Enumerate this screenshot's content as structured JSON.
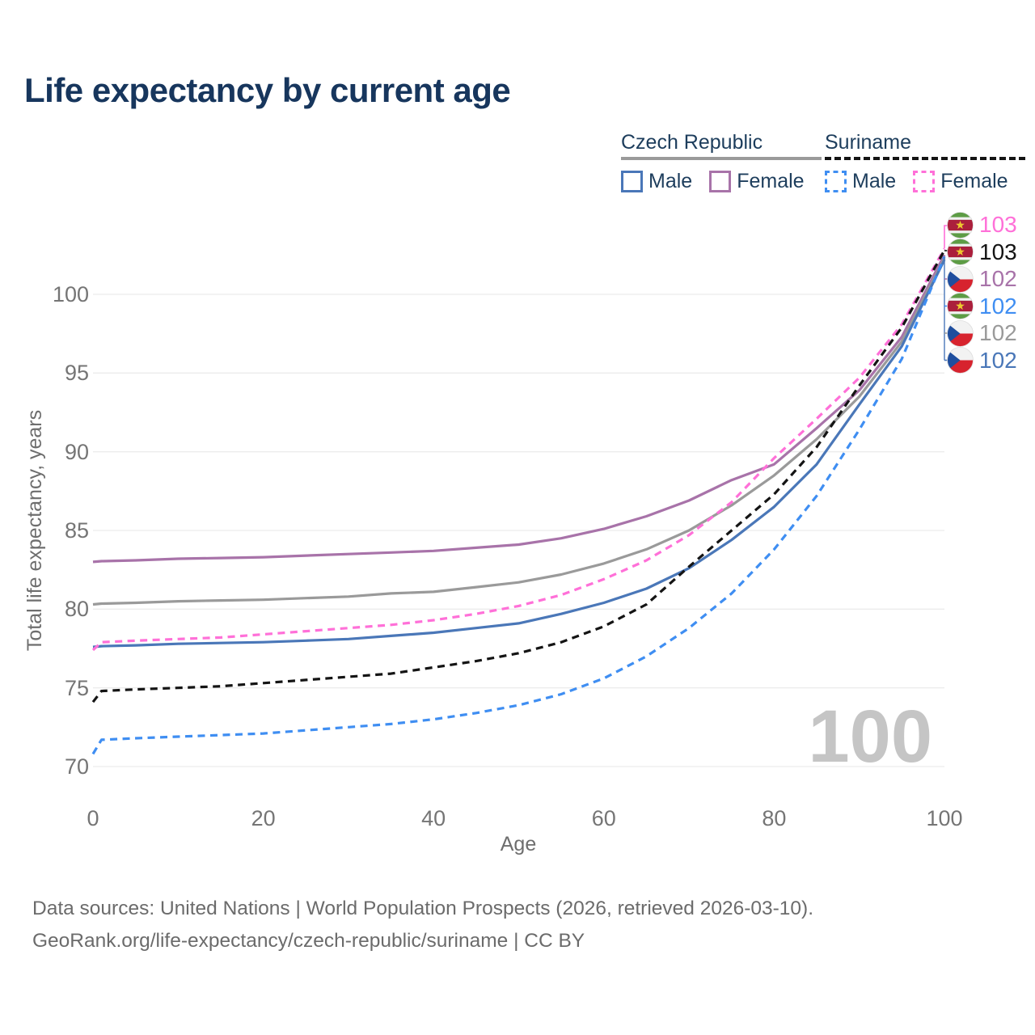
{
  "header": {
    "title": "Life expectancy by current age"
  },
  "legend": {
    "groups": [
      {
        "header": "Czech Republic",
        "line_style": "solid",
        "line_color": "#9a9a9a",
        "items": [
          {
            "label": "Male",
            "color": "#4a77b8",
            "dashed": false
          },
          {
            "label": "Female",
            "color": "#a873a9",
            "dashed": false
          }
        ]
      },
      {
        "header": "Suriname",
        "line_style": "dashed",
        "line_color": "#141414",
        "items": [
          {
            "label": "Male",
            "color": "#3f8ef2",
            "dashed": true
          },
          {
            "label": "Female",
            "color": "#ff70d8",
            "dashed": true
          }
        ]
      }
    ]
  },
  "chart_data": {
    "type": "line",
    "title": "Life expectancy by current age",
    "xlabel": "Age",
    "ylabel": "Total life expectancy, years",
    "x_ticks": [
      0,
      20,
      40,
      60,
      80,
      100
    ],
    "y_ticks": [
      70,
      75,
      80,
      85,
      90,
      95,
      100
    ],
    "xlim": [
      0,
      100
    ],
    "ylim": [
      69,
      104
    ],
    "grid": true,
    "watermark": "100",
    "x": [
      0,
      1,
      5,
      10,
      15,
      20,
      25,
      30,
      35,
      40,
      45,
      50,
      55,
      60,
      65,
      70,
      75,
      80,
      85,
      90,
      95,
      100
    ],
    "series": [
      {
        "name": "Czech Republic Female",
        "key": "czech_female",
        "color": "#a873a9",
        "dash": "solid",
        "values": [
          83.0,
          83.05,
          83.1,
          83.2,
          83.25,
          83.3,
          83.4,
          83.5,
          83.6,
          83.7,
          83.9,
          84.1,
          84.5,
          85.1,
          85.9,
          86.9,
          88.2,
          89.2,
          91.5,
          93.9,
          97.3,
          102.5
        ]
      },
      {
        "name": "Czech Republic (both sexes)",
        "key": "czech_total",
        "color": "#9a9a9a",
        "dash": "solid",
        "values": [
          80.3,
          80.35,
          80.4,
          80.5,
          80.55,
          80.6,
          80.7,
          80.8,
          81.0,
          81.1,
          81.4,
          81.7,
          82.2,
          82.9,
          83.8,
          85.0,
          86.6,
          88.5,
          90.8,
          93.5,
          97.0,
          102.3
        ]
      },
      {
        "name": "Czech Republic Male",
        "key": "czech_male",
        "color": "#4a77b8",
        "dash": "solid",
        "values": [
          77.6,
          77.65,
          77.7,
          77.8,
          77.85,
          77.9,
          78.0,
          78.1,
          78.3,
          78.5,
          78.8,
          79.1,
          79.7,
          80.4,
          81.3,
          82.6,
          84.4,
          86.5,
          89.2,
          93.0,
          96.7,
          102.2
        ]
      },
      {
        "name": "Suriname Female",
        "key": "suriname_female",
        "color": "#ff70d8",
        "dash": "dashed",
        "values": [
          77.4,
          77.9,
          78.0,
          78.1,
          78.2,
          78.4,
          78.6,
          78.8,
          79.0,
          79.3,
          79.7,
          80.2,
          80.9,
          81.9,
          83.1,
          84.7,
          86.8,
          89.6,
          92.1,
          94.7,
          98.1,
          102.9
        ]
      },
      {
        "name": "Suriname (both sexes)",
        "key": "suriname_total",
        "color": "#141414",
        "dash": "dashed",
        "values": [
          74.1,
          74.8,
          74.9,
          75.0,
          75.1,
          75.3,
          75.5,
          75.7,
          75.9,
          76.3,
          76.7,
          77.2,
          77.9,
          78.9,
          80.3,
          82.7,
          85.0,
          87.3,
          90.3,
          94.2,
          97.9,
          102.8
        ]
      },
      {
        "name": "Suriname Male",
        "key": "suriname_male",
        "color": "#3f8ef2",
        "dash": "dashed",
        "values": [
          70.8,
          71.7,
          71.8,
          71.9,
          72.0,
          72.1,
          72.3,
          72.5,
          72.7,
          73.0,
          73.4,
          73.9,
          74.6,
          75.6,
          77.0,
          78.8,
          81.0,
          83.8,
          87.2,
          91.4,
          95.9,
          102.4
        ]
      }
    ],
    "end_labels": [
      {
        "value": "103",
        "color": "#ff70d8",
        "flag": "suriname",
        "series": "Suriname Female"
      },
      {
        "value": "103",
        "color": "#141414",
        "flag": "suriname",
        "series": "Suriname (both sexes)"
      },
      {
        "value": "102",
        "color": "#a873a9",
        "flag": "czech",
        "series": "Czech Republic Female"
      },
      {
        "value": "102",
        "color": "#3f8ef2",
        "flag": "suriname",
        "series": "Suriname Male"
      },
      {
        "value": "102",
        "color": "#9a9a9a",
        "flag": "czech",
        "series": "Czech Republic (both sexes)"
      },
      {
        "value": "102",
        "color": "#4a77b8",
        "flag": "czech",
        "series": "Czech Republic Male"
      }
    ]
  },
  "footer": {
    "line1": "Data sources: United Nations | World Population Prospects (2026, retrieved 2026-03-10).",
    "line2": "GeoRank.org/life-expectancy/czech-republic/suriname | CC BY"
  }
}
